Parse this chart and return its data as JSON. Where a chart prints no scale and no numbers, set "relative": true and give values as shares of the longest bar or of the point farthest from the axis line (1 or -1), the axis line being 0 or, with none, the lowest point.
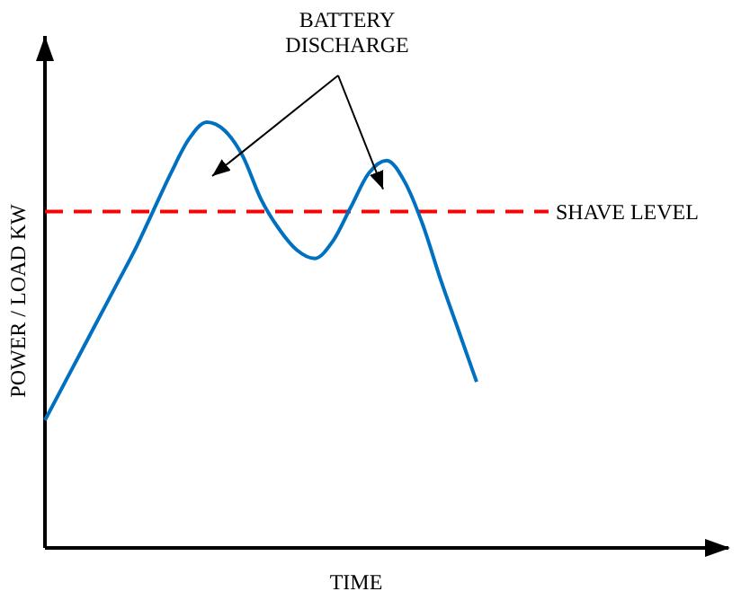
{
  "chart_data": {
    "type": "line",
    "xlabel": "TIME",
    "ylabel": "POWER / LOAD  KW",
    "relative": true,
    "tick_labels": false,
    "categories": [
      null,
      null,
      null,
      null,
      null,
      null,
      null,
      null,
      null,
      null,
      null,
      null,
      null,
      null,
      null,
      null,
      null,
      null,
      null,
      null,
      null,
      null,
      null,
      null,
      null,
      null,
      null,
      null,
      null
    ],
    "series": [
      {
        "color": "#0070c0",
        "values": [
          0.3,
          0.38,
          0.46,
          0.54,
          0.62,
          0.7,
          0.79,
          0.88,
          0.96,
          1,
          0.98,
          0.92,
          0.82,
          0.75,
          0.7,
          0.68,
          0.72,
          0.8,
          0.88,
          0.91,
          0.86,
          0.76,
          0.63,
          0.51,
          0.39,
          null,
          null,
          null,
          null
        ]
      }
    ],
    "ref_lines": [
      {
        "axis": "y",
        "value": 0.79,
        "label": "SHAVE LEVEL",
        "color": "#ff0000",
        "line_style": "dashed"
      }
    ],
    "annotations": [
      "BATTERY DISCHARGE"
    ]
  }
}
